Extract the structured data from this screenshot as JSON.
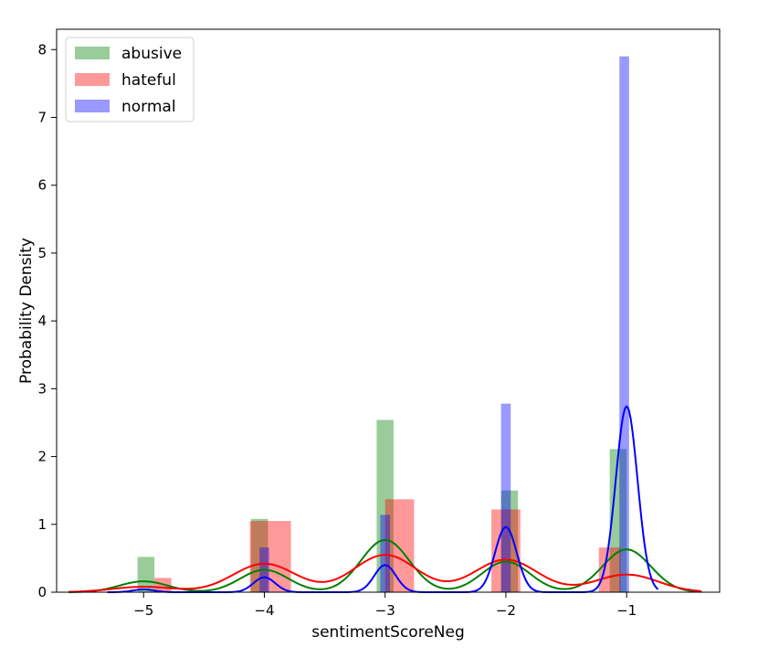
{
  "chart_data": {
    "type": "histogram+kde",
    "title": "",
    "xlabel": "sentimentScoreNeg",
    "ylabel": "Probability Density",
    "xlim": [
      -5.72,
      -0.23
    ],
    "ylim": [
      0,
      8.3
    ],
    "xticks": [
      -5,
      -4,
      -3,
      -2,
      -1
    ],
    "xtick_labels": [
      "−5",
      "−4",
      "−3",
      "−2",
      "−1"
    ],
    "yticks": [
      0,
      1,
      2,
      3,
      4,
      5,
      6,
      7,
      8
    ],
    "ytick_labels": [
      "0",
      "1",
      "2",
      "3",
      "4",
      "5",
      "6",
      "7",
      "8"
    ],
    "grid": false,
    "legend_position": "upper-left",
    "series": [
      {
        "name": "abusive",
        "color": "#008000",
        "bar_alpha": 0.4,
        "bins": [
          {
            "x0": -5.05,
            "x1": -4.91,
            "height": 0.52
          },
          {
            "x0": -4.11,
            "x1": -3.97,
            "height": 1.08
          },
          {
            "x0": -3.07,
            "x1": -2.93,
            "height": 2.54
          },
          {
            "x0": -2.04,
            "x1": -1.9,
            "height": 1.5
          },
          {
            "x0": -1.14,
            "x1": -1.0,
            "height": 2.11
          }
        ],
        "kde": {
          "peaks": [
            {
              "center": -5.0,
              "height": 0.16
            },
            {
              "center": -4.0,
              "height": 0.33
            },
            {
              "center": -3.0,
              "height": 0.77
            },
            {
              "center": -2.0,
              "height": 0.45
            },
            {
              "center": -1.0,
              "height": 0.63
            }
          ],
          "sigma": 0.2
        }
      },
      {
        "name": "hateful",
        "color": "#ff0000",
        "bar_alpha": 0.4,
        "bins": [
          {
            "x0": -4.91,
            "x1": -4.77,
            "height": 0.21
          },
          {
            "x0": -4.12,
            "x1": -3.78,
            "height": 1.05
          },
          {
            "x0": -3.0,
            "x1": -2.76,
            "height": 1.37
          },
          {
            "x0": -2.12,
            "x1": -1.88,
            "height": 1.22
          },
          {
            "x0": -1.23,
            "x1": -1.05,
            "height": 0.66
          }
        ],
        "kde": {
          "peaks": [
            {
              "center": -5.0,
              "height": 0.08
            },
            {
              "center": -4.0,
              "height": 0.42
            },
            {
              "center": -3.0,
              "height": 0.55
            },
            {
              "center": -2.0,
              "height": 0.48
            },
            {
              "center": -1.0,
              "height": 0.26
            }
          ],
          "sigma": 0.26
        }
      },
      {
        "name": "normal",
        "color": "#0000ff",
        "bar_alpha": 0.4,
        "bins": [
          {
            "x0": -4.04,
            "x1": -3.96,
            "height": 0.66
          },
          {
            "x0": -3.04,
            "x1": -2.96,
            "height": 1.14
          },
          {
            "x0": -2.04,
            "x1": -1.96,
            "height": 2.78
          },
          {
            "x0": -1.06,
            "x1": -0.98,
            "height": 7.9
          }
        ],
        "kde": {
          "peaks": [
            {
              "center": -5.0,
              "height": 0.04
            },
            {
              "center": -4.0,
              "height": 0.22
            },
            {
              "center": -3.0,
              "height": 0.4
            },
            {
              "center": -2.0,
              "height": 0.96
            },
            {
              "center": -1.0,
              "height": 2.74
            }
          ],
          "sigma": 0.09,
          "x_range": [
            -5.3,
            -0.74
          ]
        }
      }
    ]
  }
}
